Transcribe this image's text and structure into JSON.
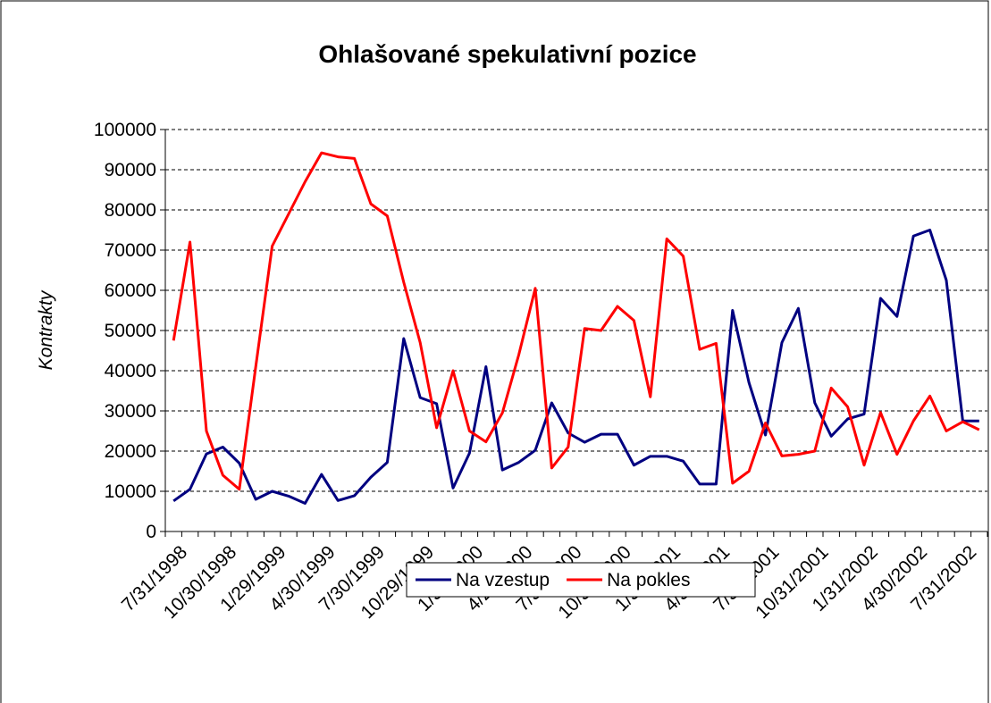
{
  "chart_data": {
    "type": "line",
    "title": "Ohlašované spekulativní pozice",
    "y_label": "Kontrakty",
    "categories": [
      "7/31/1998",
      null,
      null,
      "10/30/1998",
      null,
      null,
      "1/29/1999",
      null,
      null,
      "4/30/1999",
      null,
      null,
      "7/30/1999",
      null,
      null,
      "10/29/1999",
      null,
      null,
      "1/31/2000",
      null,
      null,
      "4/28/2000",
      null,
      null,
      "7/31/2000",
      null,
      null,
      "10/31/2000",
      null,
      null,
      "1/31/2001",
      null,
      null,
      "4/30/2001",
      null,
      null,
      "7/31/2001",
      null,
      null,
      "10/31/2001",
      null,
      null,
      "1/31/2002",
      null,
      null,
      "4/30/2002",
      null,
      null,
      "7/31/2002",
      null
    ],
    "series": [
      {
        "name": "Na vzestup",
        "color": "#000080",
        "values": [
          7600,
          10500,
          19300,
          21000,
          17000,
          8000,
          10000,
          8800,
          7000,
          14200,
          7700,
          8900,
          13500,
          17200,
          48000,
          33300,
          31800,
          10800,
          19500,
          41000,
          15300,
          17200,
          20200,
          32000,
          24500,
          22200,
          24200,
          24200,
          16500,
          18700,
          18700,
          17500,
          11800,
          11800,
          55000,
          37000,
          24000,
          47000,
          55500,
          32000,
          23700,
          28000,
          29200,
          58000,
          53500,
          73500,
          75000,
          62500,
          27500,
          27500
        ]
      },
      {
        "name": "Na pokles",
        "color": "#ff0000",
        "values": [
          47500,
          72000,
          25000,
          14000,
          10500,
          41000,
          71000,
          79000,
          87000,
          94200,
          93200,
          92800,
          81500,
          78500,
          62000,
          47000,
          25800,
          40000,
          25000,
          22300,
          29500,
          44000,
          60500,
          15800,
          21000,
          50500,
          50000,
          56000,
          52500,
          33500,
          72800,
          68500,
          45300,
          46800,
          12000,
          15000,
          27000,
          18800,
          19200,
          20000,
          35700,
          31000,
          16500,
          29600,
          19200,
          27500,
          33700,
          25000,
          27300,
          25300
        ]
      }
    ],
    "ylim": [
      0,
      100000
    ],
    "yticks": [
      0,
      10000,
      20000,
      30000,
      40000,
      50000,
      60000,
      70000,
      80000,
      90000,
      100000
    ],
    "grid": true,
    "legend": "bottom"
  }
}
